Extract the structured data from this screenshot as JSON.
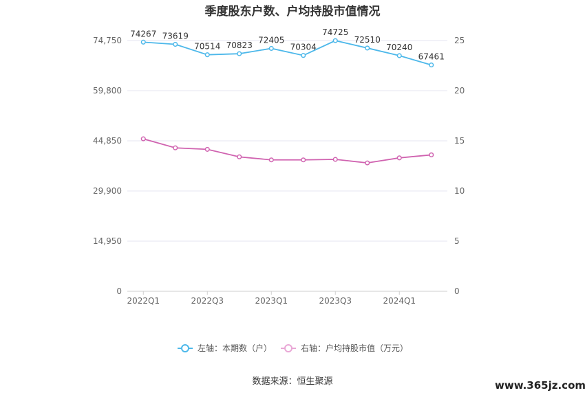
{
  "chart_data": {
    "type": "line",
    "title": "季度股东户数、户均持股市值情况",
    "x": [
      "2022Q1",
      "2022Q2",
      "2022Q3",
      "2022Q4",
      "2023Q1",
      "2023Q2",
      "2023Q3",
      "2023Q4",
      "2024Q1",
      "2024Q2"
    ],
    "x_tick_labels": [
      "2022Q1",
      "2022Q3",
      "2023Q1",
      "2023Q3",
      "2024Q1"
    ],
    "left_axis": {
      "ticks": [
        "0",
        "14,950",
        "29,900",
        "44,850",
        "59,800",
        "74,750"
      ],
      "ylim": [
        0,
        74750
      ]
    },
    "right_axis": {
      "ticks": [
        "0",
        "5",
        "10",
        "15",
        "20",
        "25"
      ],
      "ylim": [
        0,
        25
      ]
    },
    "series": [
      {
        "name": "左轴：本期数（户）",
        "axis": "left",
        "color": "#4DB8EA",
        "values": [
          74267,
          73619,
          70514,
          70823,
          72405,
          70304,
          74725,
          72510,
          70240,
          67461
        ],
        "labels": [
          "74267",
          "73619",
          "70514",
          "70823",
          "72405",
          "70304",
          "74725",
          "72510",
          "70240",
          "67461"
        ]
      },
      {
        "name": "右轴：户均持股市值（万元）",
        "axis": "right",
        "color": "#D063B0",
        "values": [
          15.2,
          14.3,
          14.15,
          13.4,
          13.1,
          13.1,
          13.15,
          12.8,
          13.3,
          13.6
        ]
      }
    ],
    "grid": true,
    "legend": "bottom"
  },
  "source_text": "数据来源：恒生聚源",
  "watermark": "www.365jz.com"
}
